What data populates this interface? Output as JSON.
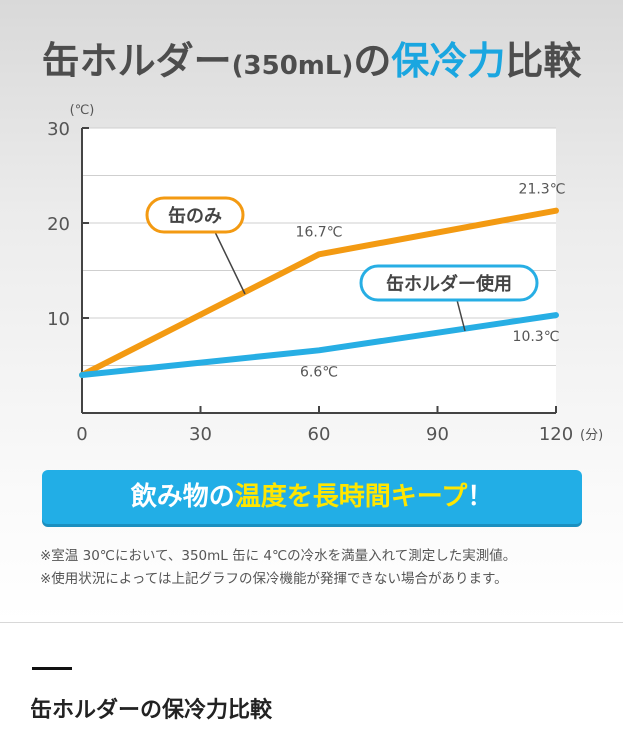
{
  "title": {
    "part1": "缶ホルダー",
    "paren": "(350mL)",
    "part2": "の",
    "highlight": "保冷力",
    "part3": "比較"
  },
  "chart_data": {
    "type": "line",
    "title": "缶ホルダー(350mL)の保冷力比較",
    "y_unit": "(℃)",
    "x_unit": "(分)",
    "xlim": [
      0,
      120
    ],
    "ylim": [
      0,
      30
    ],
    "x_ticks": [
      0,
      30,
      60,
      90,
      120
    ],
    "x_tick_labels": [
      "0",
      "30",
      "60",
      "90",
      "120"
    ],
    "y_ticks": [
      10,
      20,
      30
    ],
    "y_tick_labels": [
      "10",
      "20",
      "30"
    ],
    "series": [
      {
        "name": "缶のみ",
        "color": "#f39a12",
        "x": [
          0,
          60,
          120
        ],
        "y": [
          4,
          16.7,
          21.3
        ],
        "value_labels": [
          {
            "x": 60,
            "text": "16.7℃"
          },
          {
            "x": 120,
            "text": "21.3℃"
          }
        ]
      },
      {
        "name": "缶ホルダー使用",
        "color": "#27aee4",
        "x": [
          0,
          60,
          120
        ],
        "y": [
          4,
          6.6,
          10.3
        ],
        "value_labels": [
          {
            "x": 60,
            "text": "6.6℃"
          },
          {
            "x": 120,
            "text": "10.3℃"
          }
        ]
      }
    ]
  },
  "banner": {
    "part1": "飲み物の",
    "highlight": "温度を長時間キープ",
    "part2": "！"
  },
  "notes": [
    "※室温 30℃において、350mL 缶に 4℃の冷水を満量入れて測定した実測値。",
    "※使用状況によっては上記グラフの保冷機能が発揮できない場合があります。"
  ],
  "section_title": "缶ホルダーの保冷力比較"
}
